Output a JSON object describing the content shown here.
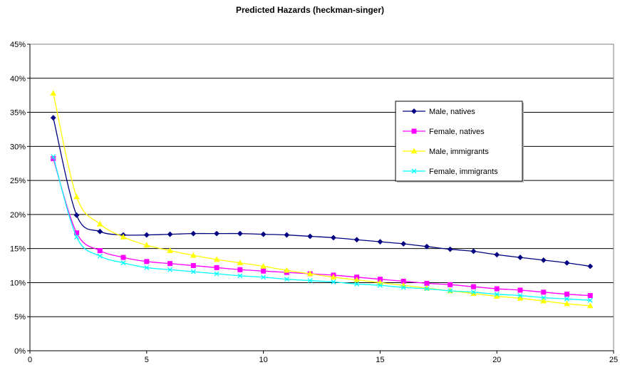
{
  "chart_data": {
    "type": "line",
    "title": "Predicted Hazards (heckman-singer)",
    "xlabel": "",
    "ylabel": "",
    "xlim": [
      0,
      25
    ],
    "ylim": [
      0,
      0.45
    ],
    "x_ticks": [
      0,
      5,
      10,
      15,
      20,
      25
    ],
    "y_ticks": [
      0,
      0.05,
      0.1,
      0.15,
      0.2,
      0.25,
      0.3,
      0.35,
      0.4,
      0.45
    ],
    "y_tick_labels": [
      "0%",
      "5%",
      "10%",
      "15%",
      "20%",
      "25%",
      "30%",
      "35%",
      "40%",
      "45%"
    ],
    "grid": "horizontal",
    "legend_position": "right",
    "x": [
      1,
      2,
      3,
      4,
      5,
      6,
      7,
      8,
      9,
      10,
      11,
      12,
      13,
      14,
      15,
      16,
      17,
      18,
      19,
      20,
      21,
      22,
      23,
      24
    ],
    "series": [
      {
        "name": "Male, natives",
        "color": "#000080",
        "marker": "diamond",
        "values": [
          0.342,
          0.199,
          0.175,
          0.17,
          0.17,
          0.171,
          0.172,
          0.172,
          0.172,
          0.171,
          0.17,
          0.168,
          0.166,
          0.163,
          0.16,
          0.157,
          0.153,
          0.149,
          0.146,
          0.141,
          0.137,
          0.133,
          0.129,
          0.124
        ]
      },
      {
        "name": "Female, natives",
        "color": "#ff00ff",
        "marker": "square",
        "values": [
          0.282,
          0.173,
          0.147,
          0.137,
          0.131,
          0.128,
          0.125,
          0.122,
          0.119,
          0.117,
          0.115,
          0.113,
          0.111,
          0.108,
          0.105,
          0.102,
          0.099,
          0.097,
          0.094,
          0.091,
          0.089,
          0.086,
          0.083,
          0.081
        ]
      },
      {
        "name": "Male, immigrants",
        "color": "#ffff00",
        "marker": "triangle",
        "values": [
          0.378,
          0.226,
          0.186,
          0.167,
          0.155,
          0.147,
          0.14,
          0.134,
          0.129,
          0.124,
          0.118,
          0.113,
          0.108,
          0.104,
          0.1,
          0.096,
          0.092,
          0.088,
          0.084,
          0.08,
          0.077,
          0.073,
          0.069,
          0.066
        ]
      },
      {
        "name": "Female, immigrants",
        "color": "#00ffff",
        "marker": "x",
        "values": [
          0.285,
          0.167,
          0.139,
          0.129,
          0.122,
          0.119,
          0.116,
          0.113,
          0.11,
          0.108,
          0.105,
          0.103,
          0.101,
          0.098,
          0.096,
          0.093,
          0.091,
          0.088,
          0.086,
          0.083,
          0.081,
          0.078,
          0.076,
          0.074
        ]
      }
    ]
  }
}
